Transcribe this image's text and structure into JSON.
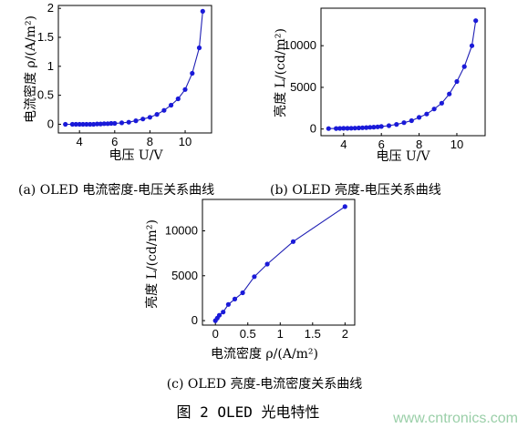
{
  "chart_data": [
    {
      "type": "line",
      "caption": "(a) OLED 电流密度-电压关系曲线",
      "xlabel": "电压 U/V",
      "ylabel": "电流密度 ρ/(A/m²)",
      "xlim": [
        2.8,
        11.5
      ],
      "ylim": [
        -0.15,
        2.05
      ],
      "xticks": [
        4,
        6,
        8,
        10
      ],
      "yticks": [
        0,
        0.5,
        1,
        1.5,
        2
      ],
      "x": [
        3.2,
        3.6,
        3.8,
        4.0,
        4.2,
        4.4,
        4.6,
        4.8,
        5.0,
        5.2,
        5.4,
        5.6,
        5.8,
        6.0,
        6.4,
        6.8,
        7.2,
        7.6,
        8.0,
        8.4,
        8.8,
        9.2,
        9.6,
        10.0,
        10.4,
        10.8,
        11.0
      ],
      "y": [
        0.0,
        0.0,
        0.0,
        0.0,
        0.0,
        0.0,
        0.0,
        0.0,
        0.005,
        0.005,
        0.01,
        0.01,
        0.015,
        0.015,
        0.025,
        0.035,
        0.06,
        0.09,
        0.12,
        0.17,
        0.24,
        0.33,
        0.44,
        0.6,
        0.88,
        1.32,
        1.95
      ],
      "grid": false
    },
    {
      "type": "line",
      "caption": "(b) OLED 亮度-电压关系曲线",
      "xlabel": "电压 U/V",
      "ylabel": "亮度 L/(cd/m²)",
      "xlim": [
        2.8,
        11.5
      ],
      "ylim": [
        -800,
        14500
      ],
      "xticks": [
        4,
        6,
        8,
        10
      ],
      "yticks": [
        0,
        5000,
        10000
      ],
      "x": [
        3.2,
        3.6,
        3.8,
        4.0,
        4.2,
        4.4,
        4.6,
        4.8,
        5.0,
        5.2,
        5.4,
        5.6,
        5.8,
        6.0,
        6.4,
        6.8,
        7.2,
        7.6,
        8.0,
        8.4,
        8.8,
        9.2,
        9.6,
        10.0,
        10.4,
        10.8,
        11.0
      ],
      "y": [
        50,
        60,
        70,
        80,
        90,
        100,
        110,
        130,
        150,
        170,
        200,
        230,
        260,
        300,
        400,
        560,
        760,
        1000,
        1400,
        1800,
        2400,
        3100,
        4200,
        5700,
        7500,
        10000,
        13000
      ],
      "grid": false
    },
    {
      "type": "line",
      "caption": "(c) OLED 亮度-电流密度关系曲线",
      "xlabel": "电流密度 ρ/(A/m²)",
      "ylabel": "亮度 L/(cd/m²)",
      "xlim": [
        -0.2,
        2.15
      ],
      "ylim": [
        -500,
        13500
      ],
      "xticks": [
        0,
        0.5,
        1,
        1.5,
        2
      ],
      "yticks": [
        0,
        5000,
        10000
      ],
      "x": [
        0.0,
        0.03,
        0.06,
        0.12,
        0.2,
        0.3,
        0.42,
        0.6,
        0.8,
        1.2,
        2.0
      ],
      "y": [
        0,
        280,
        600,
        950,
        1800,
        2400,
        3100,
        4900,
        6300,
        8800,
        12700
      ],
      "grid": false
    }
  ],
  "figure_title": "图 2 OLED 光电特性",
  "watermark": "www.cntronics.com"
}
